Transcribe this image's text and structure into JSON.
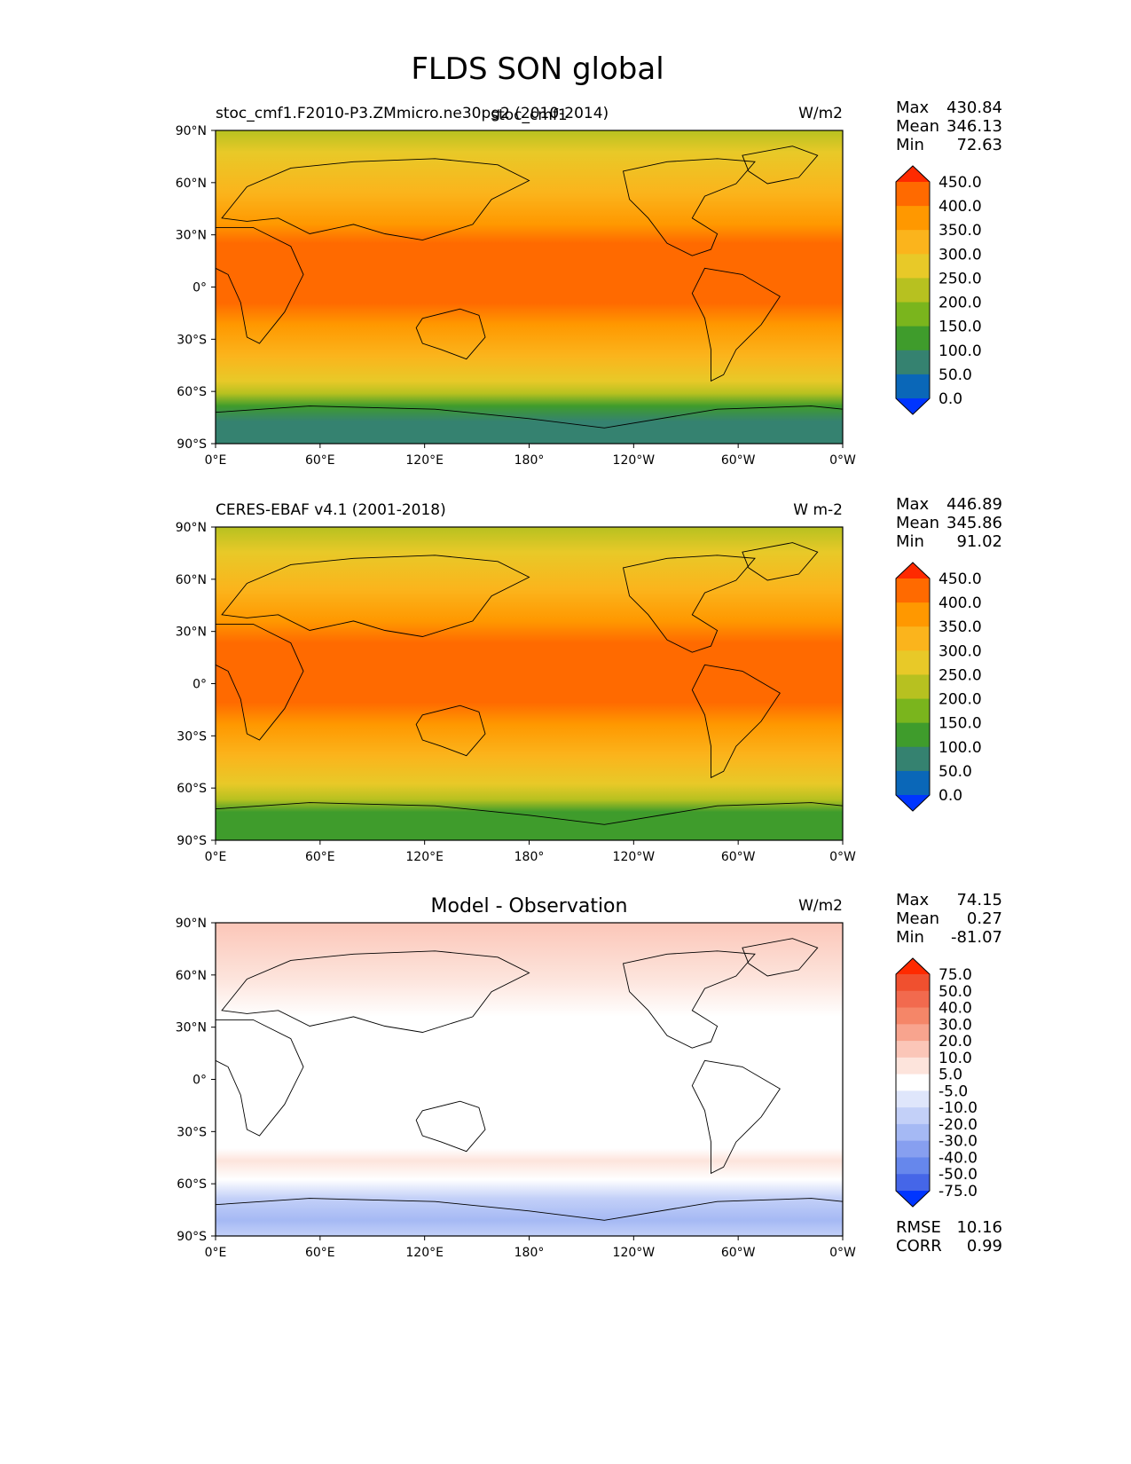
{
  "figure": {
    "title": "FLDS SON global"
  },
  "map_axes": {
    "lat_ticks": [
      "90°N",
      "60°N",
      "30°N",
      "0°",
      "30°S",
      "60°S",
      "90°S"
    ],
    "lon_ticks": [
      "0°E",
      "60°E",
      "120°E",
      "180°",
      "120°W",
      "60°W",
      "0°W"
    ]
  },
  "panels": [
    {
      "id": "model",
      "left_title": "stoc_cmf1.F2010-P3.ZMmicro.ne30pg2 (2010-2014)",
      "center_title": "stoc_cmf1",
      "units": "W/m2",
      "stats": [
        {
          "label": "Max",
          "value": "430.84"
        },
        {
          "label": "Mean",
          "value": "346.13"
        },
        {
          "label": "Min",
          "value": "72.63"
        }
      ],
      "colorbar": {
        "labels": [
          "450.0",
          "400.0",
          "350.0",
          "300.0",
          "250.0",
          "200.0",
          "150.0",
          "100.0",
          "50.0",
          "0.0"
        ],
        "colors": [
          "#ff2a00",
          "#ff6a00",
          "#ff9800",
          "#fbb41c",
          "#e8c928",
          "#b7c120",
          "#7ab51d",
          "#3f9c2c",
          "#358270",
          "#0a67b8",
          "#0035ff"
        ]
      },
      "extra_stats": []
    },
    {
      "id": "obs",
      "left_title": "CERES-EBAF v4.1 (2001-2018)",
      "center_title": "",
      "units": "W m-2",
      "stats": [
        {
          "label": "Max",
          "value": "446.89"
        },
        {
          "label": "Mean",
          "value": "345.86"
        },
        {
          "label": "Min",
          "value": "91.02"
        }
      ],
      "colorbar": {
        "labels": [
          "450.0",
          "400.0",
          "350.0",
          "300.0",
          "250.0",
          "200.0",
          "150.0",
          "100.0",
          "50.0",
          "0.0"
        ],
        "colors": [
          "#ff2a00",
          "#ff6a00",
          "#ff9800",
          "#fbb41c",
          "#e8c928",
          "#b7c120",
          "#7ab51d",
          "#3f9c2c",
          "#358270",
          "#0a67b8",
          "#0035ff"
        ]
      },
      "extra_stats": []
    },
    {
      "id": "diff",
      "left_title": "",
      "center_title": "Model - Observation",
      "units": "W/m2",
      "stats": [
        {
          "label": "Max",
          "value": "74.15"
        },
        {
          "label": "Mean",
          "value": "0.27"
        },
        {
          "label": "Min",
          "value": "-81.07"
        }
      ],
      "colorbar": {
        "labels": [
          "75.0",
          "50.0",
          "40.0",
          "30.0",
          "20.0",
          "10.0",
          "5.0",
          "-5.0",
          "-10.0",
          "-20.0",
          "-30.0",
          "-40.0",
          "-50.0",
          "-75.0"
        ],
        "colors": [
          "#ff2a00",
          "#f0502f",
          "#f26a4e",
          "#f58668",
          "#f8a48e",
          "#fbc6b8",
          "#fde4dc",
          "#ffffff",
          "#dfe6fb",
          "#c3d0f8",
          "#a5b9f4",
          "#879ff0",
          "#6687ec",
          "#4566e8",
          "#0035ff"
        ]
      },
      "extra_stats": [
        {
          "label": "RMSE",
          "value": "10.16"
        },
        {
          "label": "CORR",
          "value": "0.99"
        }
      ]
    }
  ],
  "colors": {
    "land_outline": "#000000"
  }
}
